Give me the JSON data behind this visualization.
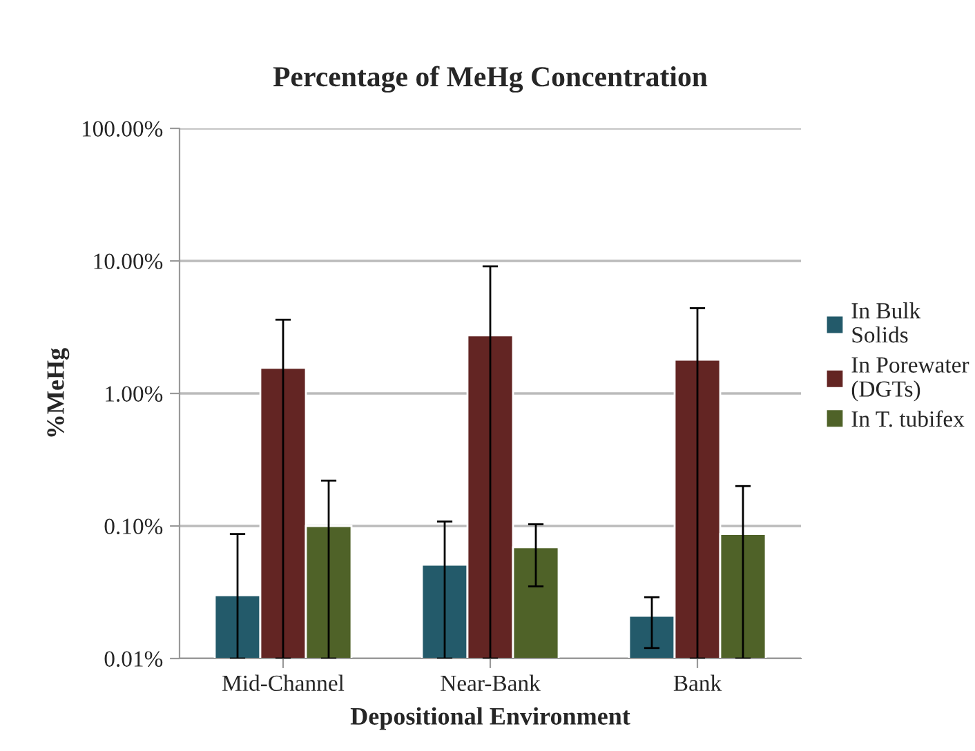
{
  "chart_data": {
    "type": "bar",
    "title": "Percentage of MeHg Concentration",
    "xlabel": "Depositional Environment",
    "ylabel": "%MeHg",
    "categories": [
      "Mid-Channel",
      "Near-Bank",
      "Bank"
    ],
    "series": [
      {
        "name": "In Bulk Solids",
        "color": "#235a6a",
        "values": [
          0.03,
          0.051,
          0.021
        ],
        "errors": [
          [
            0.01,
            0.087
          ],
          [
            0.01,
            0.108
          ],
          [
            0.012,
            0.029
          ]
        ]
      },
      {
        "name": "In Porewater (DGTs)",
        "color": "#632523",
        "values": [
          1.56,
          2.74,
          1.8
        ],
        "errors": [
          [
            0.01,
            3.6
          ],
          [
            0.01,
            9.1
          ],
          [
            0.01,
            4.4
          ]
        ]
      },
      {
        "name": "In T. tubifex",
        "color": "#4f6228",
        "values": [
          0.1,
          0.069,
          0.087
        ],
        "errors": [
          [
            0.01,
            0.22
          ],
          [
            0.035,
            0.103
          ],
          [
            0.01,
            0.2
          ]
        ]
      }
    ],
    "log": "y",
    "ylim": [
      0.01,
      100
    ],
    "yticks": [
      {
        "value": 0.01,
        "label": "0.01%"
      },
      {
        "value": 0.1,
        "label": "0.10%"
      },
      {
        "value": 1,
        "label": "1.00%"
      },
      {
        "value": 10,
        "label": "10.00%"
      },
      {
        "value": 100,
        "label": "100.00%"
      }
    ],
    "grid": "y",
    "legend": "right"
  }
}
